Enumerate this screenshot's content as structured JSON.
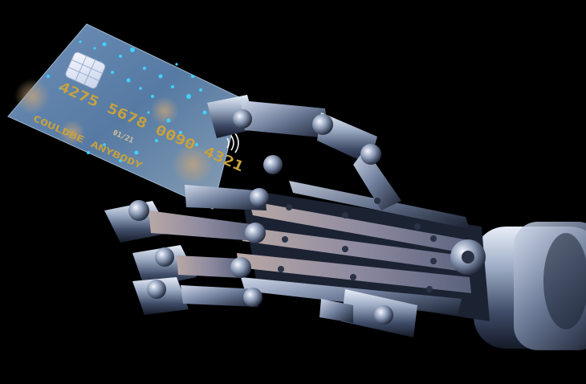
{
  "scene": {
    "background_color": "#000000",
    "card_color": "#6f8fb0",
    "card_sparkle_color": "#3fd2ff",
    "embossed_text_color": "#c9a23c",
    "metal_color": "#8d9bb3"
  },
  "card": {
    "number": "4275 5678 0090 4321",
    "expiry": "01/21",
    "holder": "COULDBE ANYBODY"
  }
}
